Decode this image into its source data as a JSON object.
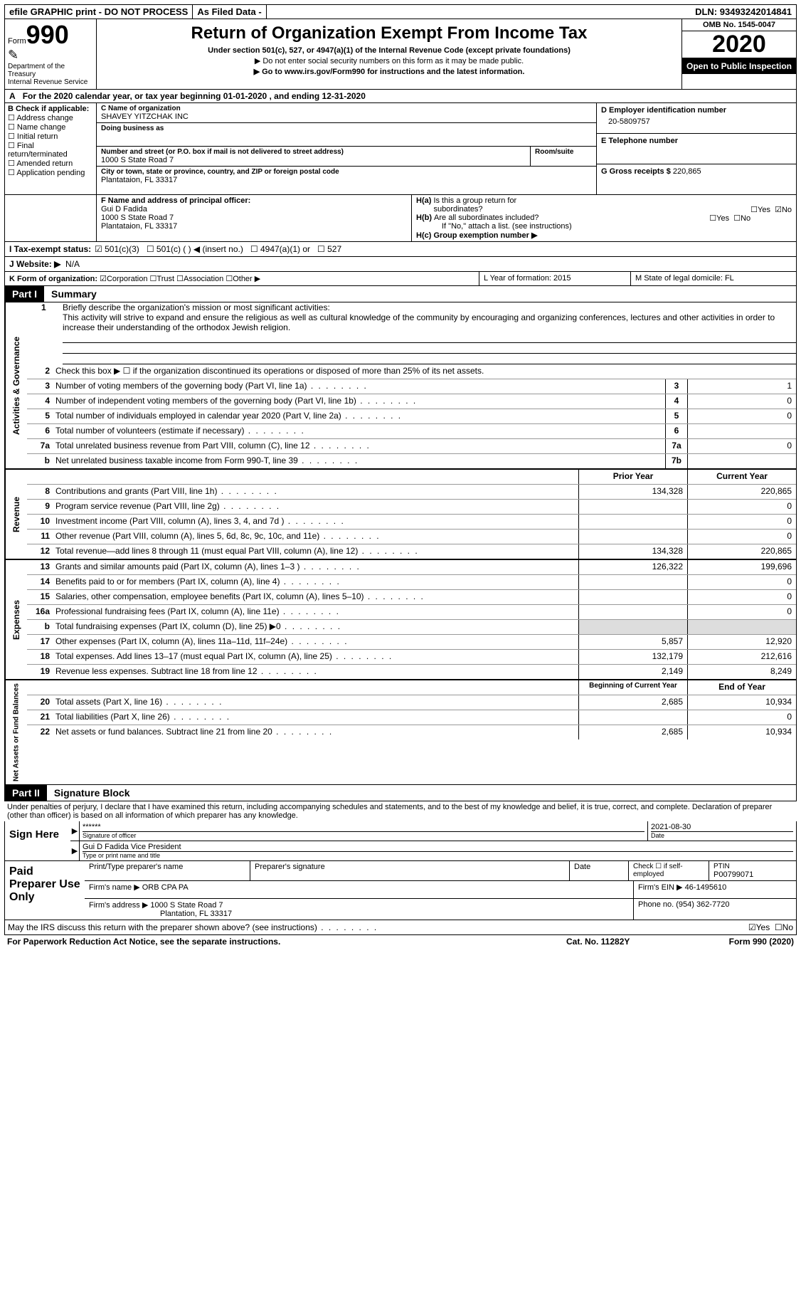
{
  "topbar": {
    "efile": "efile GRAPHIC print - DO NOT PROCESS",
    "asfiled": "As Filed Data -",
    "dln_label": "DLN:",
    "dln": "93493242014841"
  },
  "header": {
    "form_label": "Form",
    "form_number": "990",
    "dept": "Department of the Treasury",
    "irs": "Internal Revenue Service",
    "title": "Return of Organization Exempt From Income Tax",
    "sub1": "Under section 501(c), 527, or 4947(a)(1) of the Internal Revenue Code (except private foundations)",
    "sub2": "▶ Do not enter social security numbers on this form as it may be made public.",
    "sub3": "▶ Go to www.irs.gov/Form990 for instructions and the latest information.",
    "omb": "OMB No. 1545-0047",
    "year": "2020",
    "open": "Open to Public Inspection"
  },
  "rowA": {
    "prefix": "A",
    "text": "For the 2020 calendar year, or tax year beginning 01-01-2020   , and ending 12-31-2020"
  },
  "colB": {
    "label": "B Check if applicable:",
    "items": [
      "Address change",
      "Name change",
      "Initial return",
      "Final return/terminated",
      "Amended return",
      "Application pending"
    ]
  },
  "colC": {
    "name_label": "C Name of organization",
    "name": "SHAVEY YITZCHAK INC",
    "dba_label": "Doing business as",
    "addr_label": "Number and street (or P.O. box if mail is not delivered to street address)",
    "room_label": "Room/suite",
    "addr": "1000 S State Road 7",
    "city_label": "City or town, state or province, country, and ZIP or foreign postal code",
    "city": "Plantataion, FL  33317"
  },
  "colD": {
    "ein_label": "D Employer identification number",
    "ein": "20-5809757",
    "tel_label": "E Telephone number",
    "gross_label": "G Gross receipts $",
    "gross": "220,865"
  },
  "rowF": {
    "label": "F  Name and address of principal officer:",
    "name": "Gui D Fadida",
    "addr1": "1000 S State Road 7",
    "addr2": "Plantataion, FL  33317"
  },
  "rowH": {
    "a": "H(a)  Is this a group return for subordinates?",
    "b": "H(b)  Are all subordinates included?",
    "note": "If \"No,\" attach a list. (see instructions)",
    "c": "H(c)  Group exemption number ▶",
    "yes": "Yes",
    "no": "No"
  },
  "rowI": {
    "label": "I   Tax-exempt status:",
    "opts": [
      "501(c)(3)",
      "501(c) (   ) ◀ (insert no.)",
      "4947(a)(1) or",
      "527"
    ]
  },
  "rowJ": {
    "label": "J   Website: ▶",
    "val": "N/A"
  },
  "rowK": {
    "label": "K Form of organization:",
    "opts": [
      "Corporation",
      "Trust",
      "Association",
      "Other ▶"
    ]
  },
  "rowLM": {
    "l": "L Year of formation: 2015",
    "m": "M State of legal domicile: FL"
  },
  "part1": {
    "tag": "Part I",
    "title": "Summary"
  },
  "mission": {
    "num": "1",
    "label": "Briefly describe the organization's mission or most significant activities:",
    "text": "This activity will strive to expand and ensure the religious as well as cultural knowledge of the community by encouraging and organizing conferences, lectures and other activities in order to increase their understanding of the orthodox Jewish religion."
  },
  "line2": "Check this box ▶ ☐ if the organization discontinued its operations or disposed of more than 25% of its net assets.",
  "govlines": [
    {
      "n": "3",
      "t": "Number of voting members of the governing body (Part VI, line 1a)",
      "b": "3",
      "v": "1"
    },
    {
      "n": "4",
      "t": "Number of independent voting members of the governing body (Part VI, line 1b)",
      "b": "4",
      "v": "0"
    },
    {
      "n": "5",
      "t": "Total number of individuals employed in calendar year 2020 (Part V, line 2a)",
      "b": "5",
      "v": "0"
    },
    {
      "n": "6",
      "t": "Total number of volunteers (estimate if necessary)",
      "b": "6",
      "v": ""
    },
    {
      "n": "7a",
      "t": "Total unrelated business revenue from Part VIII, column (C), line 12",
      "b": "7a",
      "v": "0"
    },
    {
      "n": "b",
      "t": "Net unrelated business taxable income from Form 990-T, line 39",
      "b": "7b",
      "v": ""
    }
  ],
  "twocol_hdr": {
    "prior": "Prior Year",
    "curr": "Current Year"
  },
  "revenue": [
    {
      "n": "8",
      "t": "Contributions and grants (Part VIII, line 1h)",
      "p": "134,328",
      "c": "220,865"
    },
    {
      "n": "9",
      "t": "Program service revenue (Part VIII, line 2g)",
      "p": "",
      "c": "0"
    },
    {
      "n": "10",
      "t": "Investment income (Part VIII, column (A), lines 3, 4, and 7d )",
      "p": "",
      "c": "0"
    },
    {
      "n": "11",
      "t": "Other revenue (Part VIII, column (A), lines 5, 6d, 8c, 9c, 10c, and 11e)",
      "p": "",
      "c": "0"
    },
    {
      "n": "12",
      "t": "Total revenue—add lines 8 through 11 (must equal Part VIII, column (A), line 12)",
      "p": "134,328",
      "c": "220,865"
    }
  ],
  "expenses": [
    {
      "n": "13",
      "t": "Grants and similar amounts paid (Part IX, column (A), lines 1–3 )",
      "p": "126,322",
      "c": "199,696"
    },
    {
      "n": "14",
      "t": "Benefits paid to or for members (Part IX, column (A), line 4)",
      "p": "",
      "c": "0"
    },
    {
      "n": "15",
      "t": "Salaries, other compensation, employee benefits (Part IX, column (A), lines 5–10)",
      "p": "",
      "c": "0"
    },
    {
      "n": "16a",
      "t": "Professional fundraising fees (Part IX, column (A), line 11e)",
      "p": "",
      "c": "0"
    },
    {
      "n": "b",
      "t": "Total fundraising expenses (Part IX, column (D), line 25) ▶0",
      "p": "grey",
      "c": "grey"
    },
    {
      "n": "17",
      "t": "Other expenses (Part IX, column (A), lines 11a–11d, 11f–24e)",
      "p": "5,857",
      "c": "12,920"
    },
    {
      "n": "18",
      "t": "Total expenses. Add lines 13–17 (must equal Part IX, column (A), line 25)",
      "p": "132,179",
      "c": "212,616"
    },
    {
      "n": "19",
      "t": "Revenue less expenses. Subtract line 18 from line 12",
      "p": "2,149",
      "c": "8,249"
    }
  ],
  "net_hdr": {
    "begin": "Beginning of Current Year",
    "end": "End of Year"
  },
  "net": [
    {
      "n": "20",
      "t": "Total assets (Part X, line 16)",
      "p": "2,685",
      "c": "10,934"
    },
    {
      "n": "21",
      "t": "Total liabilities (Part X, line 26)",
      "p": "",
      "c": "0"
    },
    {
      "n": "22",
      "t": "Net assets or fund balances. Subtract line 21 from line 20",
      "p": "2,685",
      "c": "10,934"
    }
  ],
  "part2": {
    "tag": "Part II",
    "title": "Signature Block"
  },
  "sig_intro": "Under penalties of perjury, I declare that I have examined this return, including accompanying schedules and statements, and to the best of my knowledge and belief, it is true, correct, and complete. Declaration of preparer (other than officer) is based on all information of which preparer has any knowledge.",
  "sign": {
    "label": "Sign Here",
    "stars": "******",
    "sig_label": "Signature of officer",
    "date": "2021-08-30",
    "date_label": "Date",
    "name": "Gui D Fadida  Vice President",
    "name_label": "Type or print name and title"
  },
  "paid": {
    "label": "Paid Preparer Use Only",
    "h1": "Print/Type preparer's name",
    "h2": "Preparer's signature",
    "h3": "Date",
    "h4": "Check ☐ if self-employed",
    "h5": "PTIN",
    "ptin": "P00799071",
    "firm_label": "Firm's name   ▶",
    "firm": "ORB CPA PA",
    "ein_label": "Firm's EIN ▶",
    "ein": "46-1495610",
    "addr_label": "Firm's address ▶",
    "addr1": "1000 S State Road 7",
    "addr2": "Plantation, FL  33317",
    "phone_label": "Phone no.",
    "phone": "(954) 362-7720"
  },
  "footer": {
    "discuss": "May the IRS discuss this return with the preparer shown above? (see instructions)",
    "yes": "Yes",
    "no": "No",
    "paperwork": "For Paperwork Reduction Act Notice, see the separate instructions.",
    "cat": "Cat. No. 11282Y",
    "form": "Form 990 (2020)"
  },
  "vlabels": {
    "gov": "Activities & Governance",
    "rev": "Revenue",
    "exp": "Expenses",
    "net": "Net Assets or Fund Balances"
  }
}
